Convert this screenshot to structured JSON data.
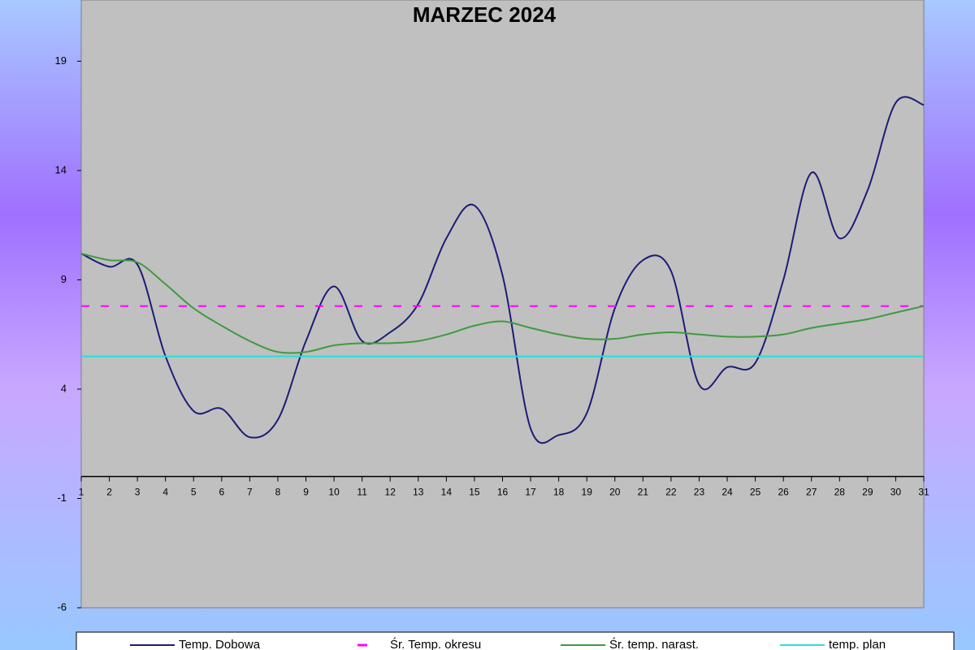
{
  "chart_data": {
    "type": "line",
    "title": "MARZEC 2024",
    "categories": [
      "1",
      "2",
      "3",
      "4",
      "5",
      "6",
      "7",
      "8",
      "9",
      "10",
      "11",
      "12",
      "13",
      "14",
      "15",
      "16",
      "17",
      "18",
      "19",
      "20",
      "21",
      "22",
      "23",
      "24",
      "25",
      "26",
      "27",
      "28",
      "29",
      "30",
      "31"
    ],
    "series": [
      {
        "name": "Temp. Dobowa",
        "color": "#1c1c78",
        "values": [
          10.2,
          9.6,
          9.7,
          5.5,
          3.0,
          3.1,
          1.8,
          2.6,
          6.2,
          8.7,
          6.2,
          6.6,
          7.9,
          10.9,
          12.4,
          9.2,
          2.2,
          1.9,
          2.9,
          7.7,
          9.9,
          9.4,
          4.2,
          5.0,
          5.2,
          9.0,
          13.9,
          10.9,
          13.1,
          17.1,
          17.0
        ]
      },
      {
        "name": "Śr. Temp. okresu",
        "color": "#ff00ff",
        "dashed": true,
        "values": [
          7.8,
          7.8,
          7.8,
          7.8,
          7.8,
          7.8,
          7.8,
          7.8,
          7.8,
          7.8,
          7.8,
          7.8,
          7.8,
          7.8,
          7.8,
          7.8,
          7.8,
          7.8,
          7.8,
          7.8,
          7.8,
          7.8,
          7.8,
          7.8,
          7.8,
          7.8,
          7.8,
          7.8,
          7.8,
          7.8,
          7.8
        ]
      },
      {
        "name": "Śr. temp. narast.",
        "color": "#3f9a3f",
        "values": [
          10.2,
          9.9,
          9.8,
          8.8,
          7.7,
          6.9,
          6.2,
          5.7,
          5.7,
          6.0,
          6.1,
          6.1,
          6.2,
          6.5,
          6.9,
          7.1,
          6.8,
          6.5,
          6.3,
          6.3,
          6.5,
          6.6,
          6.5,
          6.4,
          6.4,
          6.5,
          6.8,
          7.0,
          7.2,
          7.5,
          7.8
        ]
      },
      {
        "name": "temp. plan",
        "color": "#22e0e0",
        "values": [
          5.5,
          5.5,
          5.5,
          5.5,
          5.5,
          5.5,
          5.5,
          5.5,
          5.5,
          5.5,
          5.5,
          5.5,
          5.5,
          5.5,
          5.5,
          5.5,
          5.5,
          5.5,
          5.5,
          5.5,
          5.5,
          5.5,
          5.5,
          5.5,
          5.5,
          5.5,
          5.5,
          5.5,
          5.5,
          5.5,
          5.5
        ]
      }
    ],
    "ylim": [
      -6,
      21.8
    ],
    "yticks": [
      -6,
      -1,
      4,
      9,
      14,
      19
    ],
    "legend": "bottom"
  }
}
